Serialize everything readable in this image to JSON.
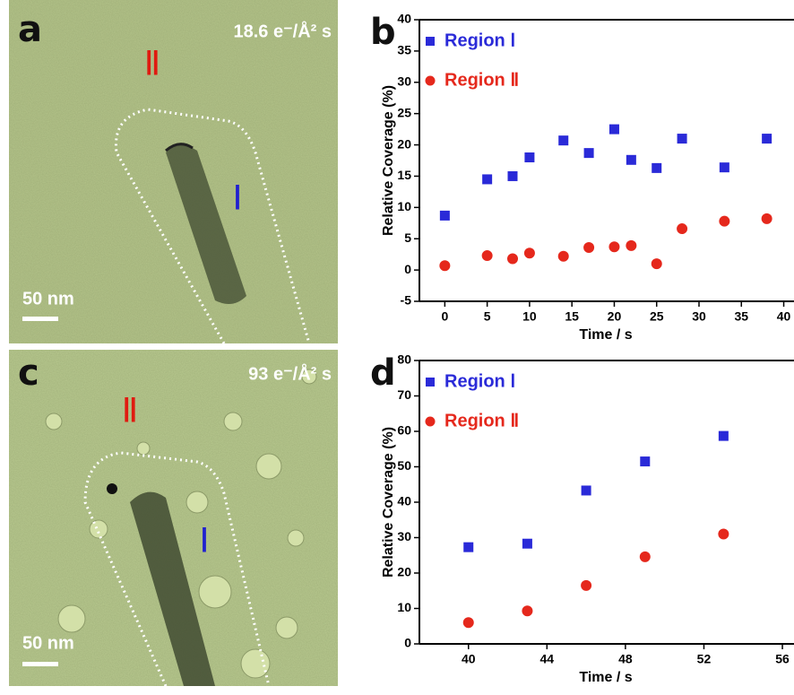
{
  "panels": [
    {
      "label": "a",
      "dose": "18.6 e⁻/Å² s",
      "region_outer": "Ⅱ",
      "region_inner": "Ⅰ",
      "scale_bar": "50 nm"
    },
    {
      "label": "c",
      "dose": "93 e⁻/Å² s",
      "region_outer": "Ⅱ",
      "region_inner": "Ⅰ",
      "scale_bar": "50 nm"
    }
  ],
  "chart_data": [
    {
      "type": "scatter",
      "panel_label": "b",
      "xlabel": "Time / s",
      "ylabel": "Relative Coverage (%)",
      "xlim": [
        -3,
        41
      ],
      "xticks": [
        0,
        5,
        10,
        15,
        20,
        25,
        30,
        35,
        40
      ],
      "ylim": [
        -5,
        40
      ],
      "yticks": [
        -5,
        0,
        5,
        10,
        15,
        20,
        25,
        30,
        35,
        40
      ],
      "legend": "upper left",
      "series": [
        {
          "name": "Region Ⅰ",
          "color": "#2a2ad8",
          "marker": "square",
          "x": [
            0,
            5,
            8,
            10,
            14,
            17,
            20,
            22,
            25,
            28,
            33,
            38
          ],
          "values": [
            8.7,
            14.5,
            15,
            18,
            20.7,
            18.7,
            22.5,
            17.6,
            16.3,
            21,
            16.4,
            21
          ]
        },
        {
          "name": "Region Ⅱ",
          "color": "#e5281c",
          "marker": "circle",
          "x": [
            0,
            5,
            8,
            10,
            14,
            17,
            20,
            22,
            25,
            28,
            33,
            38
          ],
          "values": [
            0.7,
            2.3,
            1.8,
            2.7,
            2.2,
            3.6,
            3.7,
            3.9,
            1,
            6.6,
            7.8,
            8.2
          ]
        }
      ]
    },
    {
      "type": "scatter",
      "panel_label": "d",
      "xlabel": "Time / s",
      "ylabel": "Relative Coverage (%)",
      "xlim": [
        37.5,
        56.5
      ],
      "xticks": [
        40,
        44,
        48,
        52,
        56
      ],
      "ylim": [
        0,
        80
      ],
      "yticks": [
        0,
        10,
        20,
        30,
        40,
        50,
        60,
        70,
        80
      ],
      "legend": "upper left",
      "series": [
        {
          "name": "Region Ⅰ",
          "color": "#2a2ad8",
          "marker": "square",
          "x": [
            40,
            43,
            46,
            49,
            53
          ],
          "values": [
            27.3,
            28.3,
            43.3,
            51.5,
            58.7
          ]
        },
        {
          "name": "Region Ⅱ",
          "color": "#e5281c",
          "marker": "circle",
          "x": [
            40,
            43,
            46,
            49,
            53
          ],
          "values": [
            6,
            9.3,
            16.5,
            24.6,
            31
          ]
        }
      ]
    }
  ]
}
